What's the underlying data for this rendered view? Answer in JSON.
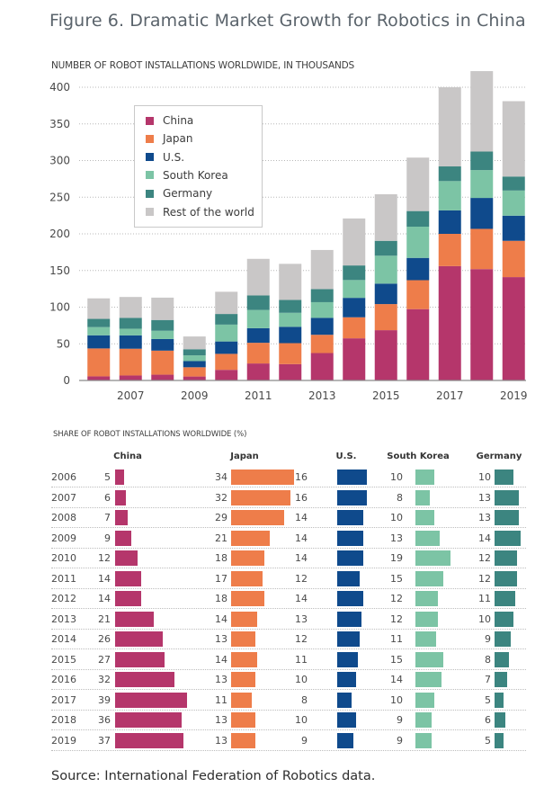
{
  "figure": {
    "title": "Figure 6. Dramatic Market Growth for Robotics in China",
    "source": "Source: International Federation of Robotics data."
  },
  "colors": {
    "China": "#B5366B",
    "Japan": "#EE7D4A",
    "U.S.": "#0F4A8C",
    "South Korea": "#7CC4A5",
    "Germany": "#3C8580",
    "Rest of the world": "#C9C7C7"
  },
  "chart_data": [
    {
      "type": "bar",
      "stacked": true,
      "title": "NUMBER OF ROBOT INSTALLATIONS WORLDWIDE, IN THOUSANDS",
      "xlabel": "",
      "ylabel": "",
      "ylim": [
        0,
        400
      ],
      "yticks": [
        0,
        50,
        100,
        150,
        200,
        250,
        300,
        350,
        400
      ],
      "xtick_labels": [
        "2007",
        "2009",
        "2011",
        "2013",
        "2015",
        "2017",
        "2019"
      ],
      "grid": true,
      "legend_position": "top-left",
      "categories": [
        "2006",
        "2007",
        "2008",
        "2009",
        "2010",
        "2011",
        "2012",
        "2013",
        "2014",
        "2015",
        "2016",
        "2017",
        "2018",
        "2019"
      ],
      "series": [
        {
          "name": "China",
          "values": [
            5.6,
            6.8,
            7.9,
            5.4,
            14.5,
            23.2,
            22.3,
            37.4,
            57.5,
            68.6,
            97.3,
            156.0,
            151.9,
            141.0
          ]
        },
        {
          "name": "Japan",
          "values": [
            38.1,
            36.5,
            32.8,
            12.6,
            21.8,
            28.2,
            28.6,
            24.9,
            28.7,
            35.6,
            39.5,
            44.0,
            54.9,
            49.5
          ]
        },
        {
          "name": "U.S.",
          "values": [
            17.9,
            18.2,
            15.8,
            8.4,
            16.9,
            19.9,
            22.3,
            23.1,
            26.5,
            27.9,
            30.4,
            32.0,
            42.2,
            34.3
          ]
        },
        {
          "name": "South Korea",
          "values": [
            11.2,
            9.1,
            11.3,
            7.8,
            23.0,
            24.9,
            19.1,
            21.4,
            24.3,
            38.1,
            42.6,
            40.0,
            38.0,
            34.3
          ]
        },
        {
          "name": "Germany",
          "values": [
            11.2,
            14.8,
            14.7,
            8.4,
            14.5,
            19.9,
            17.5,
            17.8,
            19.9,
            20.3,
            21.3,
            20.0,
            25.3,
            19.1
          ]
        },
        {
          "name": "Rest of the world",
          "values": [
            28.0,
            28.5,
            30.5,
            17.4,
            30.3,
            49.8,
            49.3,
            53.4,
            64.1,
            63.5,
            72.9,
            108.0,
            109.7,
            102.8
          ]
        }
      ]
    },
    {
      "type": "table",
      "title": "SHARE OF ROBOT INSTALLATIONS WORLDWIDE (%)",
      "columns": [
        "China",
        "Japan",
        "U.S.",
        "South Korea",
        "Germany"
      ],
      "rows": [
        {
          "year": "2006",
          "values": [
            5,
            34,
            16,
            10,
            10
          ]
        },
        {
          "year": "2007",
          "values": [
            6,
            32,
            16,
            8,
            13
          ]
        },
        {
          "year": "2008",
          "values": [
            7,
            29,
            14,
            10,
            13
          ]
        },
        {
          "year": "2009",
          "values": [
            9,
            21,
            14,
            13,
            14
          ]
        },
        {
          "year": "2010",
          "values": [
            12,
            18,
            14,
            19,
            12
          ]
        },
        {
          "year": "2011",
          "values": [
            14,
            17,
            12,
            15,
            12
          ]
        },
        {
          "year": "2012",
          "values": [
            14,
            18,
            14,
            12,
            11
          ]
        },
        {
          "year": "2013",
          "values": [
            21,
            14,
            13,
            12,
            10
          ]
        },
        {
          "year": "2014",
          "values": [
            26,
            13,
            12,
            11,
            9
          ]
        },
        {
          "year": "2015",
          "values": [
            27,
            14,
            11,
            15,
            8
          ]
        },
        {
          "year": "2016",
          "values": [
            32,
            13,
            10,
            14,
            7
          ]
        },
        {
          "year": "2017",
          "values": [
            39,
            11,
            8,
            10,
            5
          ]
        },
        {
          "year": "2018",
          "values": [
            36,
            13,
            10,
            9,
            6
          ]
        },
        {
          "year": "2019",
          "values": [
            37,
            13,
            9,
            9,
            5
          ]
        }
      ]
    }
  ]
}
